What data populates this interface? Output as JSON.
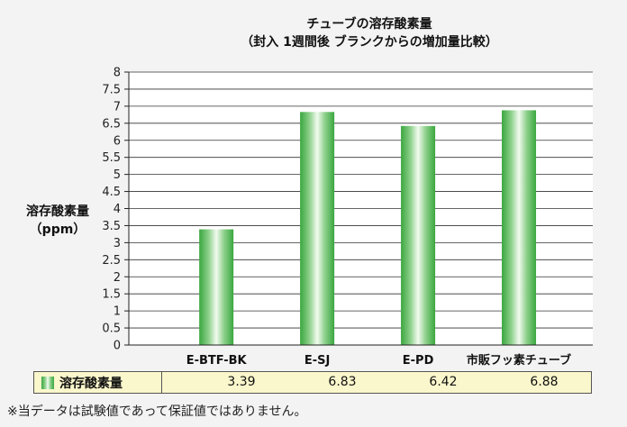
{
  "chart_data": {
    "type": "bar",
    "title": "チューブの溶存酸素量",
    "subtitle": "（封入 1週間後 ブランクからの増加量比較）",
    "ylabel_line1": "溶存酸素量",
    "ylabel_line2": "（ppm）",
    "xlabel": "",
    "categories": [
      "E-BTF-BK",
      "E-SJ",
      "E-PD",
      "市販フッ素チューブ"
    ],
    "series": [
      {
        "name": "溶存酸素量",
        "values": [
          3.39,
          6.83,
          6.42,
          6.88
        ]
      }
    ],
    "ylim": [
      0,
      8
    ],
    "y_ticks": [
      "0",
      "0.5",
      "1",
      "1.5",
      "2",
      "2.5",
      "3",
      "3.5",
      "4",
      "4.5",
      "5",
      "5.5",
      "6",
      "6.5",
      "7",
      "7.5",
      "8"
    ],
    "value_labels": [
      "3.39",
      "6.83",
      "6.42",
      "6.88"
    ],
    "grid": true,
    "legend_placement": "data-table-below",
    "colors": {
      "bar_dark": "#39a73e",
      "bar_light": "#f2fbef",
      "table_bg": "#fbf7cc"
    }
  },
  "footnote": "※当データは試験値であって保証値ではありません。"
}
